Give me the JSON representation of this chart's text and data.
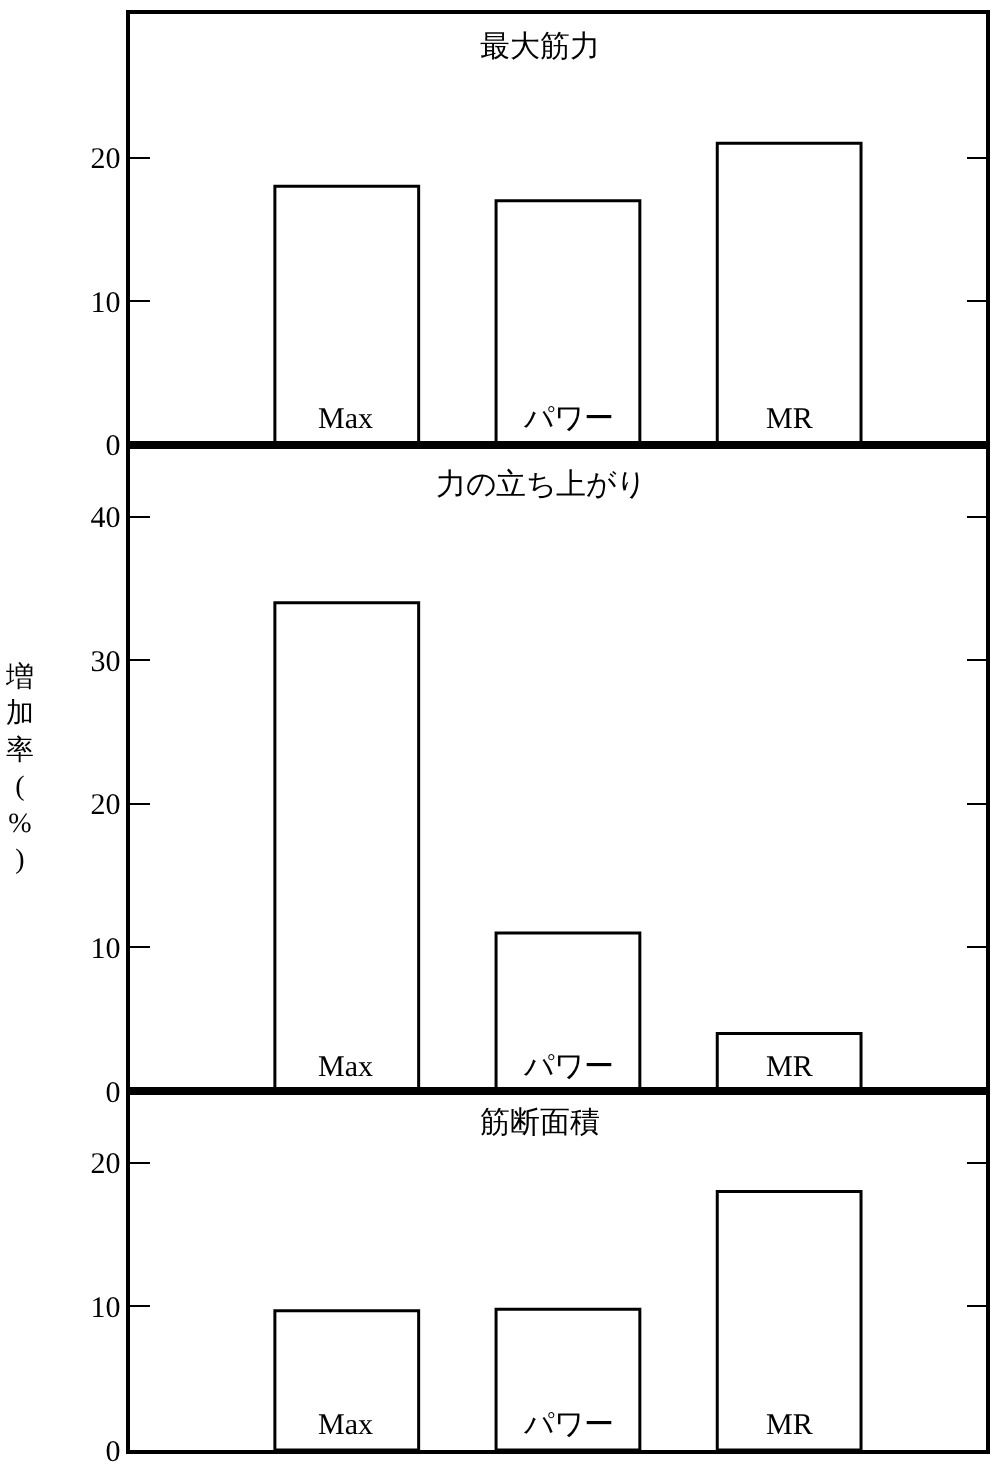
{
  "chart_data": [
    {
      "type": "bar",
      "title": "最大筋力",
      "categories": [
        "Max",
        "パワー",
        "MR"
      ],
      "values": [
        18,
        17,
        21
      ],
      "color": "#ffffff",
      "ylim": [
        0,
        30
      ],
      "yticks": [
        0,
        10,
        20
      ]
    },
    {
      "type": "bar",
      "title": "力の立ち上がり",
      "ylabel": "増加率(%)",
      "categories": [
        "Max",
        "パワー",
        "MR"
      ],
      "values": [
        34,
        11,
        4
      ],
      "color": "#ffffff",
      "ylim": [
        0,
        45
      ],
      "yticks": [
        0,
        10,
        20,
        30,
        40
      ]
    },
    {
      "type": "bar",
      "title": "筋断面積",
      "categories": [
        "Max",
        "パワー",
        "MR"
      ],
      "values": [
        9.7,
        9.8,
        18
      ],
      "color": "#ffffff",
      "ylim": [
        0,
        25
      ],
      "yticks": [
        0,
        10,
        20
      ]
    }
  ]
}
